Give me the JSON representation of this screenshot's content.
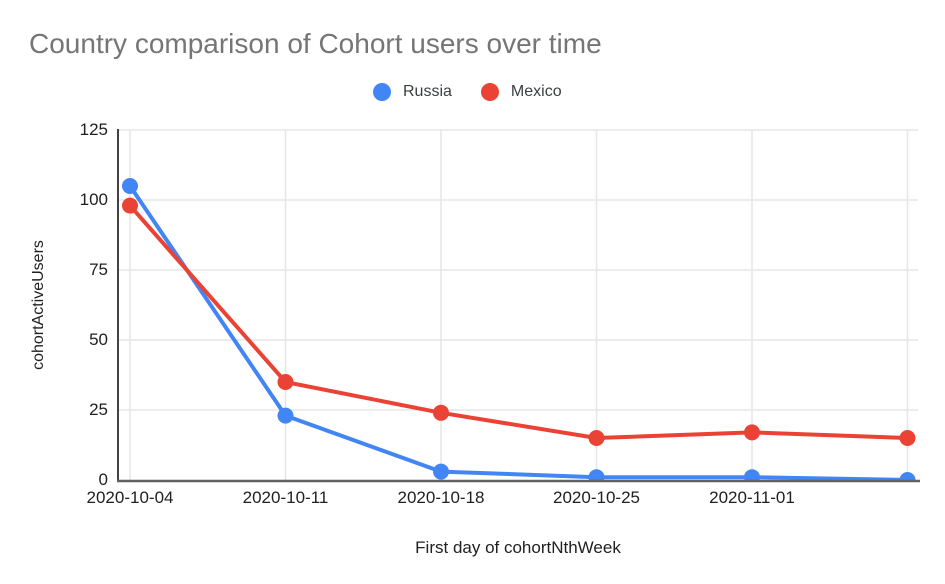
{
  "chart_data": {
    "type": "line",
    "title": "Country comparison of Cohort users over time",
    "xlabel": "First day of cohortNthWeek",
    "ylabel": "cohortActiveUsers",
    "categories": [
      "2020-10-04",
      "2020-10-11",
      "2020-10-18",
      "2020-10-25",
      "2020-11-01",
      ""
    ],
    "series": [
      {
        "name": "Russia",
        "color": "#4285F4",
        "values": [
          105,
          23,
          3,
          1,
          1,
          0
        ]
      },
      {
        "name": "Mexico",
        "color": "#EA4335",
        "values": [
          98,
          35,
          24,
          15,
          17,
          15
        ]
      }
    ],
    "ylim": [
      0,
      125
    ],
    "yticks": [
      0,
      25,
      50,
      75,
      100,
      125
    ],
    "grid": true,
    "legend_position": "top",
    "marker": "circle",
    "colors": {
      "title_text": "#757575",
      "axis_text": "#212121",
      "legend_text": "#3c4043",
      "gridline": "#e6e6e6",
      "y_axis_line": "#424242",
      "x_baseline": "#616161",
      "background": "#ffffff"
    }
  }
}
